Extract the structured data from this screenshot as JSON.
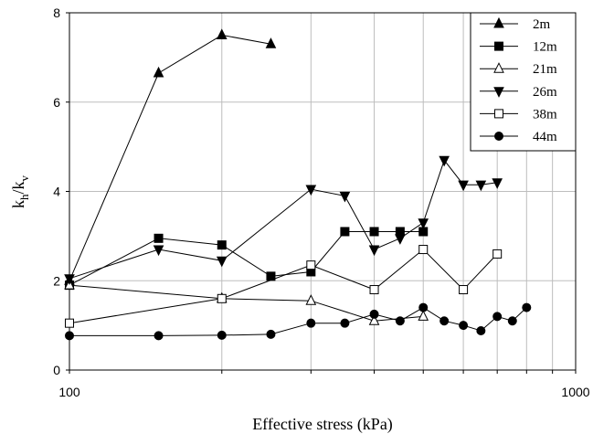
{
  "chart_data": {
    "type": "line",
    "title": "",
    "xlabel": "Effective stress (kPa)",
    "ylabel": "k",
    "ylabel_sub1": "h",
    "ylabel_sep": "/k",
    "ylabel_sub2": "v",
    "xscale": "log",
    "xlim": [
      100,
      1000
    ],
    "ylim": [
      0,
      8
    ],
    "xticks": [
      100,
      1000
    ],
    "xtick_labels": [
      "100",
      "1000"
    ],
    "yticks": [
      0,
      2,
      4,
      6,
      8
    ],
    "ytick_labels": [
      "0",
      "2",
      "4",
      "6",
      "8"
    ],
    "grid": true,
    "legend_position": "top-right",
    "series": [
      {
        "name": "2m",
        "marker": "triangle-up-filled",
        "x": [
          100,
          150,
          200,
          250
        ],
        "y": [
          2.0,
          6.65,
          7.5,
          7.3
        ]
      },
      {
        "name": "12m",
        "marker": "square-filled",
        "x": [
          100,
          150,
          200,
          250,
          300,
          350,
          400,
          450,
          500
        ],
        "y": [
          1.9,
          2.95,
          2.8,
          2.1,
          2.2,
          3.1,
          3.1,
          3.1,
          3.1
        ]
      },
      {
        "name": "21m",
        "marker": "triangle-up-open",
        "x": [
          100,
          200,
          300,
          400,
          500
        ],
        "y": [
          1.9,
          1.6,
          1.55,
          1.1,
          1.2
        ]
      },
      {
        "name": "26m",
        "marker": "triangle-down-filled",
        "x": [
          100,
          150,
          200,
          300,
          350,
          400,
          450,
          500,
          550,
          600,
          650,
          700
        ],
        "y": [
          2.05,
          2.7,
          2.45,
          4.05,
          3.9,
          2.7,
          2.95,
          3.3,
          4.7,
          4.15,
          4.15,
          4.2
        ]
      },
      {
        "name": "38m",
        "marker": "square-open",
        "x": [
          100,
          200,
          300,
          400,
          500,
          600,
          700
        ],
        "y": [
          1.05,
          1.6,
          2.35,
          1.8,
          2.7,
          1.8,
          2.6
        ]
      },
      {
        "name": "44m",
        "marker": "circle-filled",
        "x": [
          100,
          150,
          200,
          250,
          300,
          350,
          400,
          450,
          500,
          550,
          600,
          650,
          700,
          750,
          800
        ],
        "y": [
          0.77,
          0.77,
          0.78,
          0.8,
          1.05,
          1.05,
          1.25,
          1.1,
          1.4,
          1.1,
          1.0,
          0.88,
          1.2,
          1.1,
          1.4
        ]
      }
    ]
  }
}
